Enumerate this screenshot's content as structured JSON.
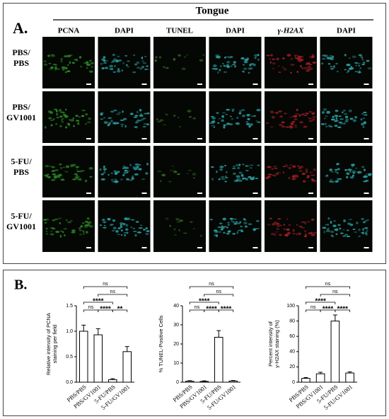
{
  "panel_a": {
    "label": "A.",
    "tissue": "Tongue",
    "columns": [
      "PCNA",
      "DAPI",
      "TUNEL",
      "DAPI",
      "γ-H2AX",
      "DAPI"
    ],
    "rows": [
      [
        "PBS/",
        "PBS"
      ],
      [
        "PBS/",
        "GV1001"
      ],
      [
        "5-FU/",
        "PBS"
      ],
      [
        "5-FU/",
        "GV1001"
      ]
    ]
  },
  "panel_b": {
    "label": "B."
  },
  "chart_data": [
    {
      "type": "bar",
      "ylabel": [
        "Relative intensity of PCNA",
        "staining per field"
      ],
      "categories": [
        "PBS/PBS",
        "PBS/GV1001",
        "5-FU/PBS",
        "5-FU/GV1001"
      ],
      "values": [
        1.0,
        0.93,
        0.05,
        0.6
      ],
      "errors": [
        0.12,
        0.12,
        0.02,
        0.1
      ],
      "ylim": [
        0,
        1.5
      ],
      "yticks": [
        {
          "value": 0,
          "label": "0.0"
        },
        0.5,
        {
          "value": 1,
          "label": "1.0"
        },
        1.5
      ],
      "comparisons": [
        {
          "between": [
            0,
            1
          ],
          "label": "ns"
        },
        {
          "between": [
            1,
            2
          ],
          "label": "****"
        },
        {
          "between": [
            2,
            3
          ],
          "label": "**"
        },
        {
          "between": [
            0,
            2
          ],
          "label": "****"
        },
        {
          "between": [
            1,
            3
          ],
          "label": "ns"
        },
        {
          "between": [
            0,
            3
          ],
          "label": "ns"
        }
      ]
    },
    {
      "type": "bar",
      "ylabel": [
        "% TUNEL-Positive Cells"
      ],
      "categories": [
        "PBS/PBS",
        "PBS/GV1001",
        "5-FU/PBS",
        "5-FU/GV1001"
      ],
      "values": [
        0.5,
        0.4,
        23.5,
        0.6
      ],
      "errors": [
        0.3,
        0.3,
        3.5,
        0.3
      ],
      "ylim": [
        0,
        40
      ],
      "yticks": [
        0,
        10,
        20,
        30,
        40
      ],
      "comparisons": [
        {
          "between": [
            0,
            1
          ],
          "label": "ns"
        },
        {
          "between": [
            1,
            2
          ],
          "label": "****"
        },
        {
          "between": [
            2,
            3
          ],
          "label": "****"
        },
        {
          "between": [
            0,
            2
          ],
          "label": "****"
        },
        {
          "between": [
            1,
            3
          ],
          "label": "ns"
        },
        {
          "between": [
            0,
            3
          ],
          "label": "ns"
        }
      ]
    },
    {
      "type": "bar",
      "ylabel": [
        "Percent intensity of",
        "γ-H2AX staining (%)"
      ],
      "categories": [
        "PBS/PBS",
        "PBS/GV1001",
        "5-FU/PBS",
        "5-FU/GV1001"
      ],
      "values": [
        5,
        11,
        80,
        12
      ],
      "errors": [
        1,
        2,
        8,
        1.5
      ],
      "ylim": [
        0,
        100
      ],
      "yticks": [
        0,
        20,
        40,
        60,
        80,
        100
      ],
      "comparisons": [
        {
          "between": [
            0,
            1
          ],
          "label": "ns"
        },
        {
          "between": [
            1,
            2
          ],
          "label": "****"
        },
        {
          "between": [
            2,
            3
          ],
          "label": "****"
        },
        {
          "between": [
            0,
            2
          ],
          "label": "****"
        },
        {
          "between": [
            1,
            3
          ],
          "label": "ns"
        },
        {
          "between": [
            0,
            3
          ],
          "label": "ns"
        }
      ]
    }
  ]
}
